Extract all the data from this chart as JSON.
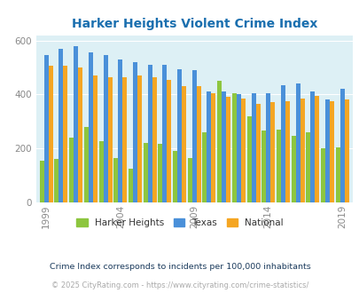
{
  "title": "Harker Heights Violent Crime Index",
  "title_color": "#1a6faf",
  "years": [
    1999,
    2000,
    2001,
    2002,
    2003,
    2004,
    2005,
    2006,
    2007,
    2008,
    2009,
    2010,
    2011,
    2012,
    2013,
    2014,
    2015,
    2016,
    2017,
    2018,
    2019
  ],
  "harker_heights": [
    155,
    160,
    240,
    280,
    225,
    165,
    125,
    220,
    215,
    190,
    165,
    260,
    450,
    405,
    320,
    265,
    270,
    245,
    260,
    200,
    205
  ],
  "texas": [
    545,
    570,
    580,
    555,
    545,
    530,
    520,
    510,
    510,
    495,
    490,
    410,
    410,
    400,
    405,
    405,
    435,
    440,
    410,
    380,
    420
  ],
  "national": [
    505,
    505,
    500,
    470,
    465,
    465,
    470,
    465,
    455,
    430,
    430,
    405,
    390,
    385,
    365,
    370,
    375,
    385,
    395,
    375,
    380
  ],
  "bar_colors": {
    "harker_heights": "#8dc63f",
    "texas": "#4a90d9",
    "national": "#f5a623"
  },
  "plot_bg_color": "#ddf0f5",
  "ylim": [
    0,
    620
  ],
  "yticks": [
    0,
    200,
    400,
    600
  ],
  "xtick_years": [
    1999,
    2004,
    2009,
    2014,
    2019
  ],
  "legend_labels": [
    "Harker Heights",
    "Texas",
    "National"
  ],
  "footnote1": "Crime Index corresponds to incidents per 100,000 inhabitants",
  "footnote2": "© 2025 CityRating.com - https://www.cityrating.com/crime-statistics/",
  "footnote1_color": "#1a3a5c",
  "footnote2_color": "#aaaaaa"
}
